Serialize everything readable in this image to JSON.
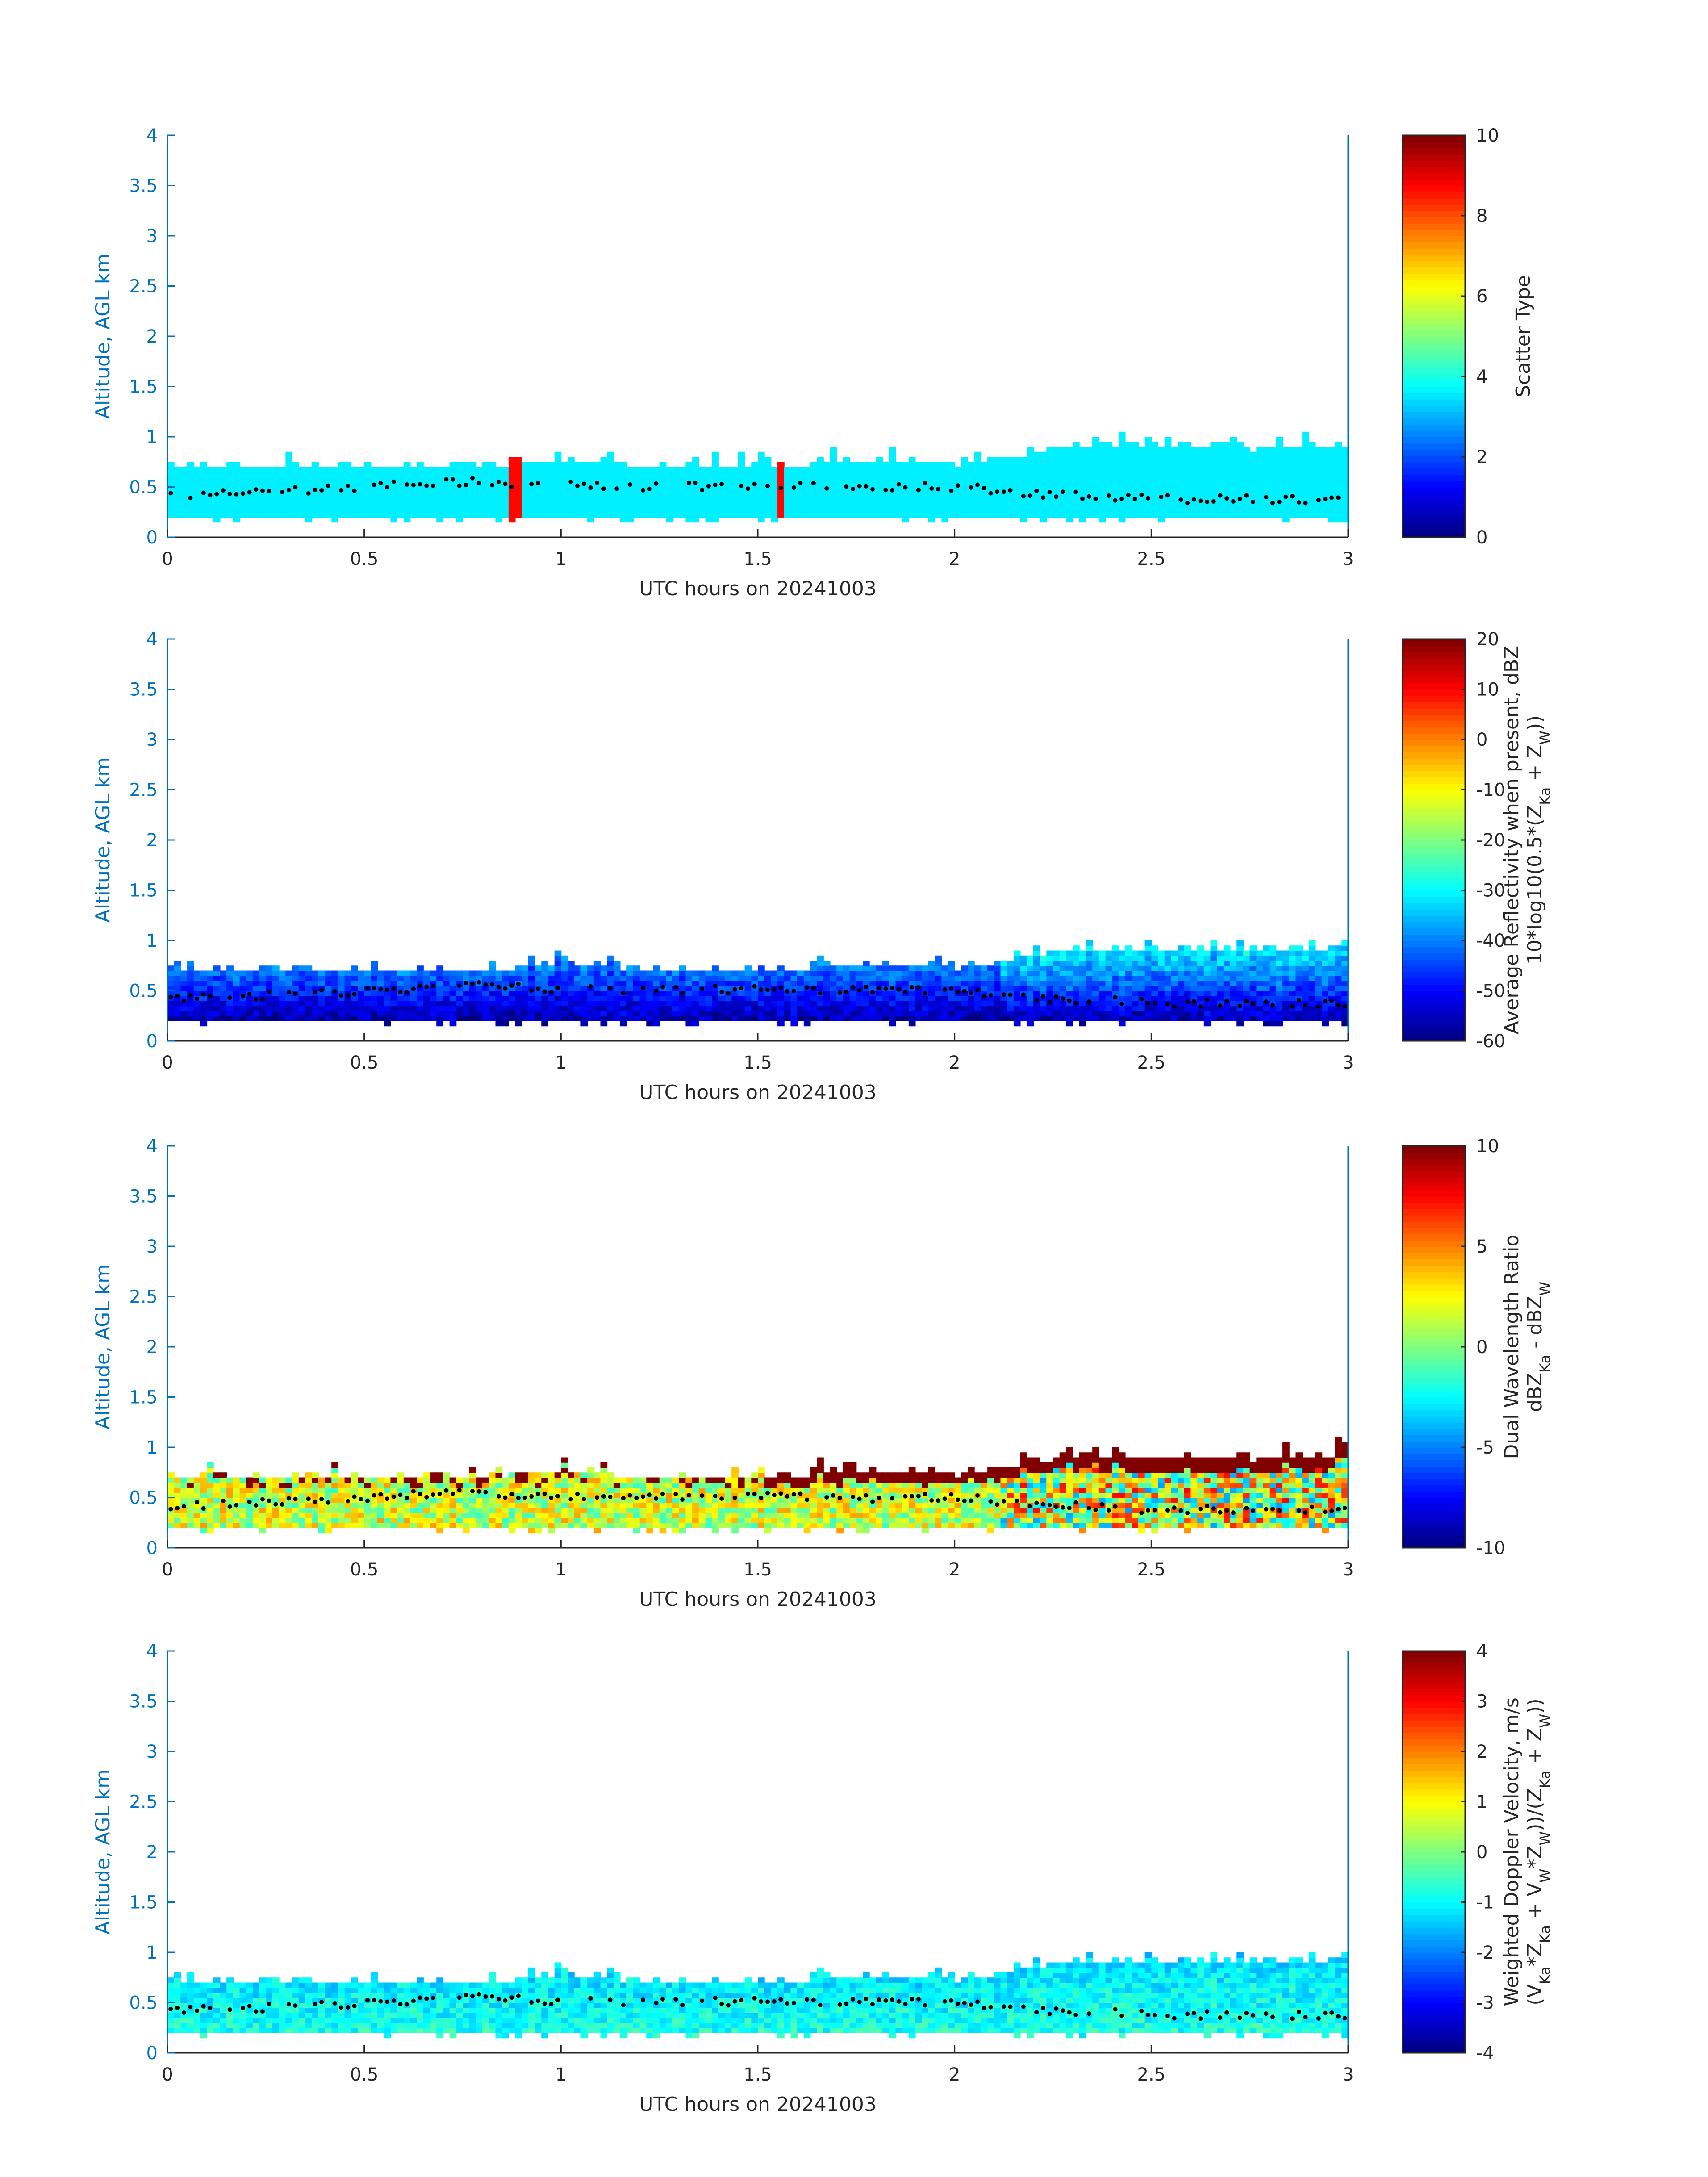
{
  "chart_data": [
    {
      "type": "heatmap",
      "xlabel": "UTC hours on 20241003",
      "ylabel": "Altitude, AGL km",
      "xlim": [
        0,
        3
      ],
      "ylim": [
        0,
        4
      ],
      "xticks": [
        "0",
        "0.5",
        "1",
        "1.5",
        "2",
        "2.5",
        "3"
      ],
      "yticks": [
        "0",
        "0.5",
        "1",
        "1.5",
        "2",
        "2.5",
        "3",
        "3.5",
        "4"
      ],
      "colorbar": {
        "label": [
          "Scatter Type"
        ],
        "range": [
          0,
          10
        ],
        "ticks": [
          "0",
          "2",
          "4",
          "6",
          "8",
          "10"
        ],
        "colormap": "jet"
      },
      "field": {
        "typical_value": 3.6,
        "spread": 0,
        "special_columns": [
          {
            "time_h": 0.88,
            "value": 8.7
          },
          {
            "time_h": 1.55,
            "value": 8.7
          }
        ]
      }
    },
    {
      "type": "heatmap",
      "xlabel": "UTC hours on 20241003",
      "ylabel": "Altitude, AGL km",
      "xlim": [
        0,
        3
      ],
      "ylim": [
        0,
        4
      ],
      "xticks": [
        "0",
        "0.5",
        "1",
        "1.5",
        "2",
        "2.5",
        "3"
      ],
      "yticks": [
        "0",
        "0.5",
        "1",
        "1.5",
        "2",
        "2.5",
        "3",
        "3.5",
        "4"
      ],
      "colorbar": {
        "label": [
          "Average Reflectivity when present, dBZ",
          "10*log10(0.5*(Z_Ka + Z_W))"
        ],
        "range": [
          -60,
          20
        ],
        "ticks": [
          "-60",
          "-50",
          "-40",
          "-30",
          "-20",
          "-10",
          "0",
          "10",
          "20"
        ],
        "colormap": "jet"
      },
      "field": {
        "base_value": -56,
        "top_value": -40,
        "late_top_value": -30,
        "spread": 5
      }
    },
    {
      "type": "heatmap",
      "xlabel": "UTC hours on 20241003",
      "ylabel": "Altitude, AGL km",
      "xlim": [
        0,
        3
      ],
      "ylim": [
        0,
        4
      ],
      "xticks": [
        "0",
        "0.5",
        "1",
        "1.5",
        "2",
        "2.5",
        "3"
      ],
      "yticks": [
        "0",
        "0.5",
        "1",
        "1.5",
        "2",
        "2.5",
        "3",
        "3.5",
        "4"
      ],
      "colorbar": {
        "label": [
          "Dual Wavelength Ratio",
          "dBZ_Ka - dBZ_W"
        ],
        "range": [
          -10,
          10
        ],
        "ticks": [
          "-10",
          "-5",
          "0",
          "5",
          "10"
        ],
        "colormap": "jet"
      },
      "field": {
        "base_value": 1.5,
        "top_value": 10,
        "spread": 3
      }
    },
    {
      "type": "heatmap",
      "xlabel": "UTC hours on 20241003",
      "ylabel": "Altitude, AGL km",
      "xlim": [
        0,
        3
      ],
      "ylim": [
        0,
        4
      ],
      "xticks": [
        "0",
        "0.5",
        "1",
        "1.5",
        "2",
        "2.5",
        "3"
      ],
      "yticks": [
        "0",
        "0.5",
        "1",
        "1.5",
        "2",
        "2.5",
        "3",
        "3.5",
        "4"
      ],
      "colorbar": {
        "label": [
          "Weighted Doppler Velocity, m/s",
          "(V_Ka*Z_Ka + V_W*Z_W))/(Z_Ka + Z_W))"
        ],
        "range": [
          -4,
          4
        ],
        "ticks": [
          "-4",
          "-3",
          "-2",
          "-1",
          "0",
          "1",
          "2",
          "3",
          "4"
        ],
        "colormap": "jet"
      },
      "field": {
        "base_value": -0.8,
        "top_value": -1.2,
        "spread": 0.5
      }
    }
  ],
  "layer": {
    "time_h": [
      0,
      0.25,
      0.5,
      0.75,
      1,
      1.25,
      1.5,
      1.75,
      2,
      2.25,
      2.5,
      2.75,
      3
    ],
    "cloud_base_km": [
      0.2,
      0.2,
      0.2,
      0.2,
      0.2,
      0.2,
      0.2,
      0.2,
      0.2,
      0.2,
      0.2,
      0.2,
      0.2
    ],
    "cloud_top_km": [
      0.68,
      0.68,
      0.68,
      0.68,
      0.72,
      0.68,
      0.68,
      0.72,
      0.7,
      0.85,
      0.88,
      0.85,
      0.9
    ],
    "dot_altitude_km": [
      0.42,
      0.45,
      0.5,
      0.55,
      0.52,
      0.5,
      0.52,
      0.5,
      0.5,
      0.42,
      0.38,
      0.38,
      0.38
    ]
  }
}
